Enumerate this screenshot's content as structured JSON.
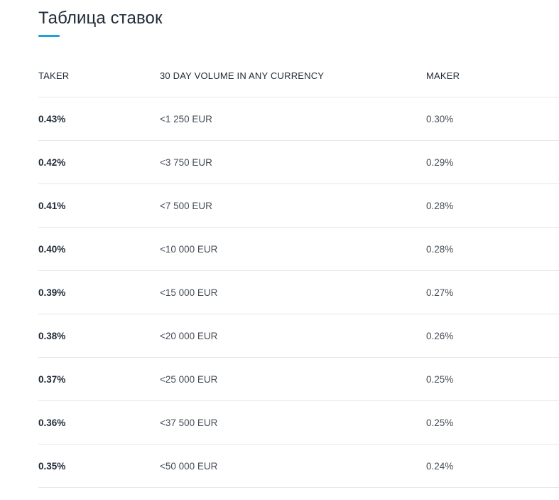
{
  "title": "Таблица ставок",
  "table": {
    "headers": {
      "taker": "TAKER",
      "volume": "30 DAY VOLUME IN ANY CURRENCY",
      "maker": "MAKER"
    },
    "rows": [
      {
        "taker": "0.43%",
        "volume": "<1 250 EUR",
        "maker": "0.30%"
      },
      {
        "taker": "0.42%",
        "volume": "<3 750 EUR",
        "maker": "0.29%"
      },
      {
        "taker": "0.41%",
        "volume": "<7 500 EUR",
        "maker": "0.28%"
      },
      {
        "taker": "0.40%",
        "volume": "<10 000 EUR",
        "maker": "0.28%"
      },
      {
        "taker": "0.39%",
        "volume": "<15 000 EUR",
        "maker": "0.27%"
      },
      {
        "taker": "0.38%",
        "volume": "<20 000 EUR",
        "maker": "0.26%"
      },
      {
        "taker": "0.37%",
        "volume": "<25 000 EUR",
        "maker": "0.25%"
      },
      {
        "taker": "0.36%",
        "volume": "<37 500 EUR",
        "maker": "0.25%"
      },
      {
        "taker": "0.35%",
        "volume": "<50 000 EUR",
        "maker": "0.24%"
      }
    ]
  },
  "colors": {
    "accent": "#1aa3d6",
    "text": "#1f2a37",
    "divider": "#e3e6ea"
  }
}
